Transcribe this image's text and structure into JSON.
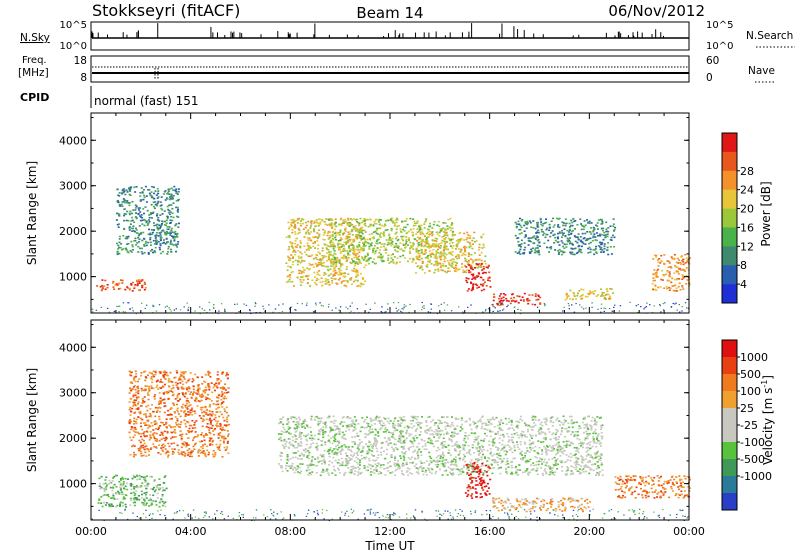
{
  "header": {
    "station": "Stokkseyri (fitACF)",
    "beam": "Beam 14",
    "date": "06/Nov/2012"
  },
  "noise_panel": {
    "left_label": "N.Sky",
    "right_label": "N.Search",
    "left_ticks": [
      "10^5",
      "10^0"
    ],
    "right_ticks": [
      "10^5",
      "10^0"
    ]
  },
  "freq_panel": {
    "left_label_1": "Freq.",
    "left_label_2": "[MHz]",
    "right_label": "Nave",
    "left_ticks": [
      "18",
      "8"
    ],
    "right_ticks": [
      "60",
      "0"
    ]
  },
  "cpid": {
    "label": "CPID",
    "value": "normal (fast) 151"
  },
  "chart_data": [
    {
      "type": "heatmap",
      "name": "power",
      "ylabel": "Slant Range [km]",
      "ylim": [
        200,
        4600
      ],
      "xlim": [
        0,
        24
      ],
      "yticks": [
        1000,
        2000,
        3000,
        4000
      ],
      "colorbar": {
        "label": "Power [dB]",
        "ticks": [
          "4",
          "8",
          "12",
          "16",
          "20",
          "24",
          "28"
        ],
        "colors": [
          "#1f2fd6",
          "#2a5fb0",
          "#3f8a6e",
          "#49b24b",
          "#9ac83a",
          "#e8c63a",
          "#f3922b",
          "#e8571c",
          "#e01717"
        ]
      },
      "regions": [
        {
          "t": [
            1.0,
            3.5
          ],
          "r": [
            1500,
            3000
          ],
          "level": 2
        },
        {
          "t": [
            0.2,
            2.2
          ],
          "r": [
            700,
            950
          ],
          "level": 7
        },
        {
          "t": [
            7.8,
            11.0
          ],
          "r": [
            800,
            2300
          ],
          "level": 5
        },
        {
          "t": [
            9.5,
            14.5
          ],
          "r": [
            1300,
            2300
          ],
          "level": 4
        },
        {
          "t": [
            13.0,
            15.8
          ],
          "r": [
            1100,
            2000
          ],
          "level": 5
        },
        {
          "t": [
            15.0,
            16.0
          ],
          "r": [
            700,
            1300
          ],
          "level": 8
        },
        {
          "t": [
            16.0,
            18.0
          ],
          "r": [
            400,
            650
          ],
          "level": 8
        },
        {
          "t": [
            19.0,
            21.0
          ],
          "r": [
            500,
            750
          ],
          "level": 5
        },
        {
          "t": [
            22.5,
            24.0
          ],
          "r": [
            700,
            1500
          ],
          "level": 6
        },
        {
          "t": [
            17.0,
            21.0
          ],
          "r": [
            1500,
            2300
          ],
          "level": 2
        }
      ]
    },
    {
      "type": "heatmap",
      "name": "velocity",
      "ylabel": "Slant Range [km]",
      "ylim": [
        200,
        4600
      ],
      "xlim": [
        0,
        24
      ],
      "yticks": [
        1000,
        2000,
        3000,
        4000
      ],
      "xticks": [
        "00:00",
        "04:00",
        "08:00",
        "12:00",
        "16:00",
        "20:00",
        "00:00"
      ],
      "xlabel": "Time UT",
      "colorbar": {
        "label": "Velocity [m s",
        "label_sup": "-1",
        "label_end": "]",
        "ticks": [
          "1000",
          "500",
          "100",
          "25",
          "-25",
          "-100",
          "-500",
          "-1000"
        ],
        "colors": [
          "#2a3fc8",
          "#2a7a9a",
          "#3f9a5a",
          "#58c23a",
          "#c8c8c0",
          "#c8c8c0",
          "#f0a030",
          "#f07a20",
          "#e84010",
          "#e01010"
        ]
      },
      "regions": [
        {
          "t": [
            1.5,
            5.5
          ],
          "r": [
            1600,
            3500
          ],
          "level": 7
        },
        {
          "t": [
            0.2,
            3.0
          ],
          "r": [
            500,
            1200
          ],
          "level": 3
        },
        {
          "t": [
            7.5,
            20.5
          ],
          "r": [
            1200,
            2500
          ],
          "level": 4
        },
        {
          "t": [
            15.0,
            16.0
          ],
          "r": [
            700,
            1500
          ],
          "level": 9
        },
        {
          "t": [
            16.0,
            20.0
          ],
          "r": [
            400,
            700
          ],
          "level": 6
        },
        {
          "t": [
            21.0,
            24.0
          ],
          "r": [
            700,
            1200
          ],
          "level": 7
        }
      ]
    }
  ]
}
